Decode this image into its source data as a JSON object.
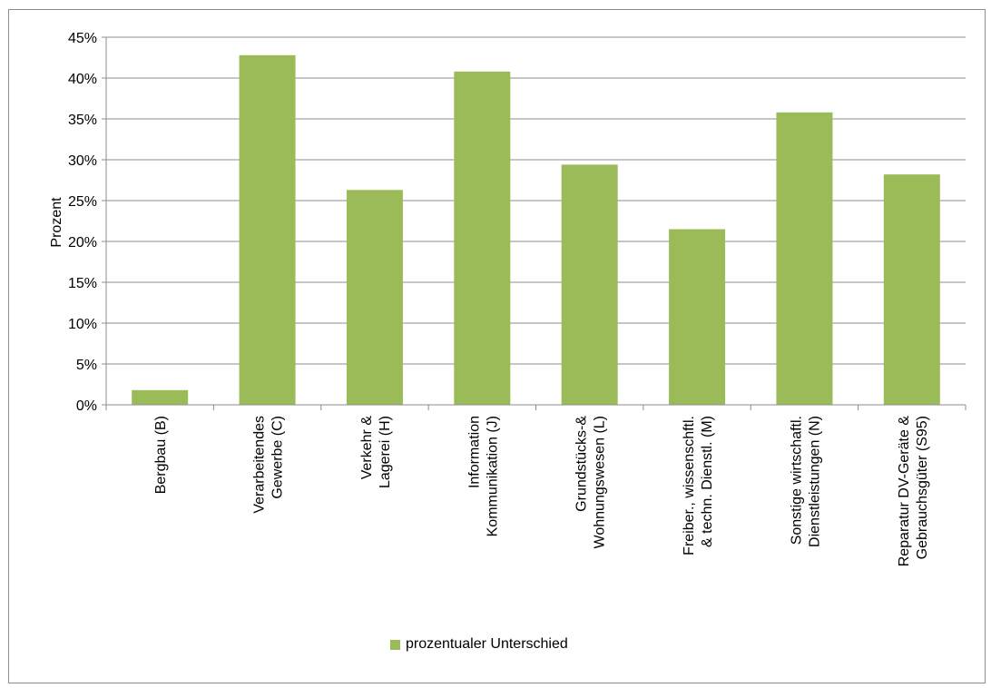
{
  "chart_data": {
    "type": "bar",
    "title": "",
    "xlabel": "",
    "ylabel": "Prozent",
    "ylim": [
      0,
      45
    ],
    "yticks": [
      "0%",
      "5%",
      "10%",
      "15%",
      "20%",
      "25%",
      "30%",
      "35%",
      "40%",
      "45%"
    ],
    "grid": true,
    "legend_position": "bottom",
    "bar_color": "#9bbb59",
    "categories": [
      "Bergbau (B)",
      "Verarbeitendes Gewerbe (C)",
      "Verkehr & Lagerei (H)",
      "Information Kommunikation (J)",
      "Grundstücks-& Wohnungswesen (L)",
      "Freiber., wissenschftl. & techn. Dienstl. (M)",
      "Sonstige wirtschaftl. Dienstleistungen (N)",
      "Reparatur DV-Geräte & Gebrauchsgüter (S95)"
    ],
    "category_lines": [
      [
        "Bergbau (B)"
      ],
      [
        "Verarbeitendes",
        "Gewerbe (C)"
      ],
      [
        "Verkehr &",
        "Lagerei (H)"
      ],
      [
        "Information",
        "Kommunikation (J)"
      ],
      [
        "Grundstücks-&",
        "Wohnungswesen (L)"
      ],
      [
        "Freiber., wissenschftl.",
        "& techn. Dienstl. (M)"
      ],
      [
        "Sonstige wirtschaftl.",
        "Dienstleistungen (N)"
      ],
      [
        "Reparatur DV-Geräte &",
        "Gebrauchsgüter (S95)"
      ]
    ],
    "series": [
      {
        "name": "prozentualer Unterschied",
        "values": [
          1.8,
          42.8,
          26.3,
          40.8,
          29.4,
          21.5,
          35.8,
          28.2
        ]
      }
    ]
  }
}
